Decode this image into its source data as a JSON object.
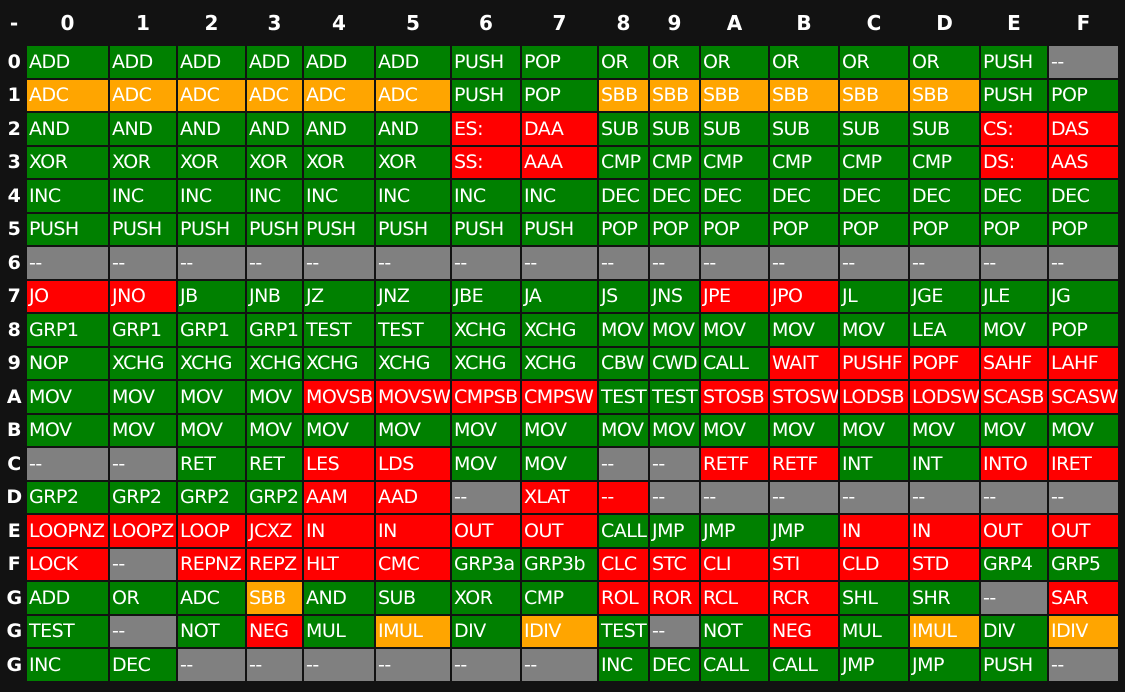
{
  "table": {
    "header": [
      "-",
      "0",
      "1",
      "2",
      "3",
      "4",
      "5",
      "6",
      "7",
      "8",
      "9",
      "A",
      "B",
      "C",
      "D",
      "E",
      "F"
    ],
    "rows": [
      {
        "label": "0",
        "cells": [
          "ADD",
          "ADD",
          "ADD",
          "ADD",
          "ADD",
          "ADD",
          "PUSH",
          "POP",
          "OR",
          "OR",
          "OR",
          "OR",
          "OR",
          "OR",
          "PUSH",
          "--"
        ],
        "colors": [
          "#008000",
          "#008000",
          "#008000",
          "#008000",
          "#008000",
          "#008000",
          "#008000",
          "#008000",
          "#008000",
          "#008000",
          "#008000",
          "#008000",
          "#008000",
          "#008000",
          "#008000",
          "#808080"
        ]
      },
      {
        "label": "1",
        "cells": [
          "ADC",
          "ADC",
          "ADC",
          "ADC",
          "ADC",
          "ADC",
          "PUSH",
          "POP",
          "SBB",
          "SBB",
          "SBB",
          "SBB",
          "SBB",
          "SBB",
          "PUSH",
          "POP"
        ],
        "colors": [
          "#ffa500",
          "#ffa500",
          "#ffa500",
          "#ffa500",
          "#ffa500",
          "#ffa500",
          "#008000",
          "#008000",
          "#ffa500",
          "#ffa500",
          "#ffa500",
          "#ffa500",
          "#ffa500",
          "#ffa500",
          "#008000",
          "#008000"
        ]
      },
      {
        "label": "2",
        "cells": [
          "AND",
          "AND",
          "AND",
          "AND",
          "AND",
          "AND",
          "ES:",
          "DAA",
          "SUB",
          "SUB",
          "SUB",
          "SUB",
          "SUB",
          "SUB",
          "CS:",
          "DAS"
        ],
        "colors": [
          "#008000",
          "#008000",
          "#008000",
          "#008000",
          "#008000",
          "#008000",
          "#ff0000",
          "#ff0000",
          "#008000",
          "#008000",
          "#008000",
          "#008000",
          "#008000",
          "#008000",
          "#ff0000",
          "#ff0000"
        ]
      },
      {
        "label": "3",
        "cells": [
          "XOR",
          "XOR",
          "XOR",
          "XOR",
          "XOR",
          "XOR",
          "SS:",
          "AAA",
          "CMP",
          "CMP",
          "CMP",
          "CMP",
          "CMP",
          "CMP",
          "DS:",
          "AAS"
        ],
        "colors": [
          "#008000",
          "#008000",
          "#008000",
          "#008000",
          "#008000",
          "#008000",
          "#ff0000",
          "#ff0000",
          "#008000",
          "#008000",
          "#008000",
          "#008000",
          "#008000",
          "#008000",
          "#ff0000",
          "#ff0000"
        ]
      },
      {
        "label": "4",
        "cells": [
          "INC",
          "INC",
          "INC",
          "INC",
          "INC",
          "INC",
          "INC",
          "INC",
          "DEC",
          "DEC",
          "DEC",
          "DEC",
          "DEC",
          "DEC",
          "DEC",
          "DEC"
        ],
        "colors": [
          "#008000",
          "#008000",
          "#008000",
          "#008000",
          "#008000",
          "#008000",
          "#008000",
          "#008000",
          "#008000",
          "#008000",
          "#008000",
          "#008000",
          "#008000",
          "#008000",
          "#008000",
          "#008000"
        ]
      },
      {
        "label": "5",
        "cells": [
          "PUSH",
          "PUSH",
          "PUSH",
          "PUSH",
          "PUSH",
          "PUSH",
          "PUSH",
          "PUSH",
          "POP",
          "POP",
          "POP",
          "POP",
          "POP",
          "POP",
          "POP",
          "POP"
        ],
        "colors": [
          "#008000",
          "#008000",
          "#008000",
          "#008000",
          "#008000",
          "#008000",
          "#008000",
          "#008000",
          "#008000",
          "#008000",
          "#008000",
          "#008000",
          "#008000",
          "#008000",
          "#008000",
          "#008000"
        ]
      },
      {
        "label": "6",
        "cells": [
          "--",
          "--",
          "--",
          "--",
          "--",
          "--",
          "--",
          "--",
          "--",
          "--",
          "--",
          "--",
          "--",
          "--",
          "--",
          "--"
        ],
        "colors": [
          "#808080",
          "#808080",
          "#808080",
          "#808080",
          "#808080",
          "#808080",
          "#808080",
          "#808080",
          "#808080",
          "#808080",
          "#808080",
          "#808080",
          "#808080",
          "#808080",
          "#808080",
          "#808080"
        ]
      },
      {
        "label": "7",
        "cells": [
          "JO",
          "JNO",
          "JB",
          "JNB",
          "JZ",
          "JNZ",
          "JBE",
          "JA",
          "JS",
          "JNS",
          "JPE",
          "JPO",
          "JL",
          "JGE",
          "JLE",
          "JG"
        ],
        "colors": [
          "#ff0000",
          "#ff0000",
          "#008000",
          "#008000",
          "#008000",
          "#008000",
          "#008000",
          "#008000",
          "#008000",
          "#008000",
          "#ff0000",
          "#ff0000",
          "#008000",
          "#008000",
          "#008000",
          "#008000"
        ]
      },
      {
        "label": "8",
        "cells": [
          "GRP1",
          "GRP1",
          "GRP1",
          "GRP1",
          "TEST",
          "TEST",
          "XCHG",
          "XCHG",
          "MOV",
          "MOV",
          "MOV",
          "MOV",
          "MOV",
          "LEA",
          "MOV",
          "POP"
        ],
        "colors": [
          "#008000",
          "#008000",
          "#008000",
          "#008000",
          "#008000",
          "#008000",
          "#008000",
          "#008000",
          "#008000",
          "#008000",
          "#008000",
          "#008000",
          "#008000",
          "#008000",
          "#008000",
          "#008000"
        ]
      },
      {
        "label": "9",
        "cells": [
          "NOP",
          "XCHG",
          "XCHG",
          "XCHG",
          "XCHG",
          "XCHG",
          "XCHG",
          "XCHG",
          "CBW",
          "CWD",
          "CALL",
          "WAIT",
          "PUSHF",
          "POPF",
          "SAHF",
          "LAHF"
        ],
        "colors": [
          "#008000",
          "#008000",
          "#008000",
          "#008000",
          "#008000",
          "#008000",
          "#008000",
          "#008000",
          "#008000",
          "#008000",
          "#008000",
          "#ff0000",
          "#ff0000",
          "#ff0000",
          "#ff0000",
          "#ff0000"
        ]
      },
      {
        "label": "A",
        "cells": [
          "MOV",
          "MOV",
          "MOV",
          "MOV",
          "MOVSB",
          "MOVSW",
          "CMPSB",
          "CMPSW",
          "TEST",
          "TEST",
          "STOSB",
          "STOSW",
          "LODSB",
          "LODSW",
          "SCASB",
          "SCASW"
        ],
        "colors": [
          "#008000",
          "#008000",
          "#008000",
          "#008000",
          "#ff0000",
          "#ff0000",
          "#ff0000",
          "#ff0000",
          "#008000",
          "#008000",
          "#ff0000",
          "#ff0000",
          "#ff0000",
          "#ff0000",
          "#ff0000",
          "#ff0000"
        ]
      },
      {
        "label": "B",
        "cells": [
          "MOV",
          "MOV",
          "MOV",
          "MOV",
          "MOV",
          "MOV",
          "MOV",
          "MOV",
          "MOV",
          "MOV",
          "MOV",
          "MOV",
          "MOV",
          "MOV",
          "MOV",
          "MOV"
        ],
        "colors": [
          "#008000",
          "#008000",
          "#008000",
          "#008000",
          "#008000",
          "#008000",
          "#008000",
          "#008000",
          "#008000",
          "#008000",
          "#008000",
          "#008000",
          "#008000",
          "#008000",
          "#008000",
          "#008000"
        ]
      },
      {
        "label": "C",
        "cells": [
          "--",
          "--",
          "RET",
          "RET",
          "LES",
          "LDS",
          "MOV",
          "MOV",
          "--",
          "--",
          "RETF",
          "RETF",
          "INT",
          "INT",
          "INTO",
          "IRET"
        ],
        "colors": [
          "#808080",
          "#808080",
          "#008000",
          "#008000",
          "#ff0000",
          "#ff0000",
          "#008000",
          "#008000",
          "#808080",
          "#808080",
          "#ff0000",
          "#ff0000",
          "#008000",
          "#008000",
          "#ff0000",
          "#ff0000"
        ]
      },
      {
        "label": "D",
        "cells": [
          "GRP2",
          "GRP2",
          "GRP2",
          "GRP2",
          "AAM",
          "AAD",
          "--",
          "XLAT",
          "--",
          "--",
          "--",
          "--",
          "--",
          "--",
          "--",
          "--"
        ],
        "colors": [
          "#008000",
          "#008000",
          "#008000",
          "#008000",
          "#ff0000",
          "#ff0000",
          "#808080",
          "#ff0000",
          "#ff0000",
          "#808080",
          "#808080",
          "#808080",
          "#808080",
          "#808080",
          "#808080",
          "#808080"
        ]
      },
      {
        "label": "E",
        "cells": [
          "LOOPNZ",
          "LOOPZ",
          "LOOP",
          "JCXZ",
          "IN",
          "IN",
          "OUT",
          "OUT",
          "CALL",
          "JMP",
          "JMP",
          "JMP",
          "IN",
          "IN",
          "OUT",
          "OUT"
        ],
        "colors": [
          "#ff0000",
          "#ff0000",
          "#ff0000",
          "#ff0000",
          "#ff0000",
          "#ff0000",
          "#ff0000",
          "#ff0000",
          "#008000",
          "#008000",
          "#008000",
          "#008000",
          "#ff0000",
          "#ff0000",
          "#ff0000",
          "#ff0000"
        ]
      },
      {
        "label": "F",
        "cells": [
          "LOCK",
          "--",
          "REPNZ",
          "REPZ",
          "HLT",
          "CMC",
          "GRP3a",
          "GRP3b",
          "CLC",
          "STC",
          "CLI",
          "STI",
          "CLD",
          "STD",
          "GRP4",
          "GRP5"
        ],
        "colors": [
          "#ff0000",
          "#808080",
          "#ff0000",
          "#ff0000",
          "#ff0000",
          "#ff0000",
          "#008000",
          "#008000",
          "#ff0000",
          "#ff0000",
          "#ff0000",
          "#ff0000",
          "#ff0000",
          "#ff0000",
          "#008000",
          "#008000"
        ]
      },
      {
        "label": "G",
        "cells": [
          "ADD",
          "OR",
          "ADC",
          "SBB",
          "AND",
          "SUB",
          "XOR",
          "CMP",
          "ROL",
          "ROR",
          "RCL",
          "RCR",
          "SHL",
          "SHR",
          "--",
          "SAR"
        ],
        "colors": [
          "#008000",
          "#008000",
          "#008000",
          "#ffa500",
          "#008000",
          "#008000",
          "#008000",
          "#008000",
          "#ff0000",
          "#ff0000",
          "#ff0000",
          "#ff0000",
          "#008000",
          "#008000",
          "#808080",
          "#ff0000"
        ]
      },
      {
        "label": "G",
        "cells": [
          "TEST",
          "--",
          "NOT",
          "NEG",
          "MUL",
          "IMUL",
          "DIV",
          "IDIV",
          "TEST",
          "--",
          "NOT",
          "NEG",
          "MUL",
          "IMUL",
          "DIV",
          "IDIV"
        ],
        "colors": [
          "#008000",
          "#808080",
          "#008000",
          "#ff0000",
          "#008000",
          "#ffa500",
          "#008000",
          "#ffa500",
          "#008000",
          "#808080",
          "#008000",
          "#ff0000",
          "#008000",
          "#ffa500",
          "#008000",
          "#ffa500"
        ]
      },
      {
        "label": "G",
        "cells": [
          "INC",
          "DEC",
          "--",
          "--",
          "--",
          "--",
          "--",
          "--",
          "INC",
          "DEC",
          "CALL",
          "CALL",
          "JMP",
          "JMP",
          "PUSH",
          "--"
        ],
        "colors": [
          "#008000",
          "#008000",
          "#808080",
          "#808080",
          "#808080",
          "#808080",
          "#808080",
          "#808080",
          "#008000",
          "#008000",
          "#008000",
          "#008000",
          "#008000",
          "#008000",
          "#008000",
          "#808080"
        ]
      }
    ]
  }
}
